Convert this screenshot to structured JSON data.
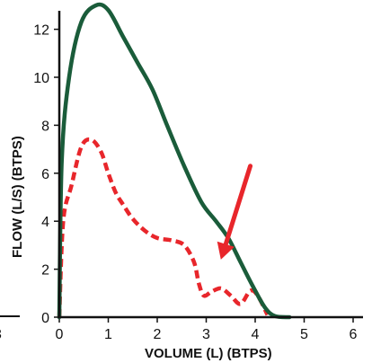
{
  "chart_data": {
    "type": "line",
    "xlabel": "VOLUME (L) (BTPS)",
    "ylabel": "FLOW (L/S) (BTPS)",
    "xlim": [
      0,
      6
    ],
    "ylim": [
      0,
      13
    ],
    "x_ticks": [
      0,
      1,
      2,
      3,
      4,
      5,
      6
    ],
    "y_ticks": [
      0,
      2,
      4,
      6,
      8,
      10,
      12
    ],
    "grid": false,
    "legend": "none",
    "series": [
      {
        "color": "#1a5c3a",
        "style": "solid",
        "points": [
          [
            0,
            0
          ],
          [
            0.05,
            6.5
          ],
          [
            0.2,
            10.0
          ],
          [
            0.45,
            12.3
          ],
          [
            0.75,
            13.0
          ],
          [
            1.0,
            12.8
          ],
          [
            1.3,
            11.7
          ],
          [
            1.6,
            10.6
          ],
          [
            1.9,
            9.5
          ],
          [
            2.2,
            8.0
          ],
          [
            2.55,
            6.3
          ],
          [
            2.9,
            4.8
          ],
          [
            3.2,
            4.0
          ],
          [
            3.45,
            3.3
          ],
          [
            3.7,
            2.3
          ],
          [
            3.95,
            1.3
          ],
          [
            4.2,
            0.4
          ],
          [
            4.4,
            0.05
          ],
          [
            4.7,
            0.0
          ]
        ]
      },
      {
        "color": "#e8262b",
        "style": "dashed",
        "points": [
          [
            0,
            0
          ],
          [
            0.08,
            4.0
          ],
          [
            0.25,
            5.5
          ],
          [
            0.45,
            7.1
          ],
          [
            0.65,
            7.4
          ],
          [
            0.85,
            6.9
          ],
          [
            1.0,
            6.0
          ],
          [
            1.15,
            5.2
          ],
          [
            1.3,
            4.7
          ],
          [
            1.5,
            4.1
          ],
          [
            1.75,
            3.6
          ],
          [
            2.0,
            3.3
          ],
          [
            2.3,
            3.2
          ],
          [
            2.55,
            3.0
          ],
          [
            2.75,
            2.3
          ],
          [
            2.85,
            1.4
          ],
          [
            2.95,
            0.9
          ],
          [
            3.1,
            1.05
          ],
          [
            3.3,
            1.2
          ],
          [
            3.5,
            0.9
          ],
          [
            3.7,
            0.55
          ],
          [
            3.9,
            1.1
          ],
          [
            4.05,
            0.9
          ],
          [
            4.25,
            0.1
          ]
        ]
      }
    ],
    "annotations": [
      {
        "type": "arrow",
        "color": "#e8262b",
        "from": [
          3.9,
          6.3
        ],
        "to": [
          3.3,
          2.4
        ]
      }
    ],
    "partial_text": {
      "left_edge_character": "3",
      "left_edge_rule_color": "#111111"
    }
  }
}
